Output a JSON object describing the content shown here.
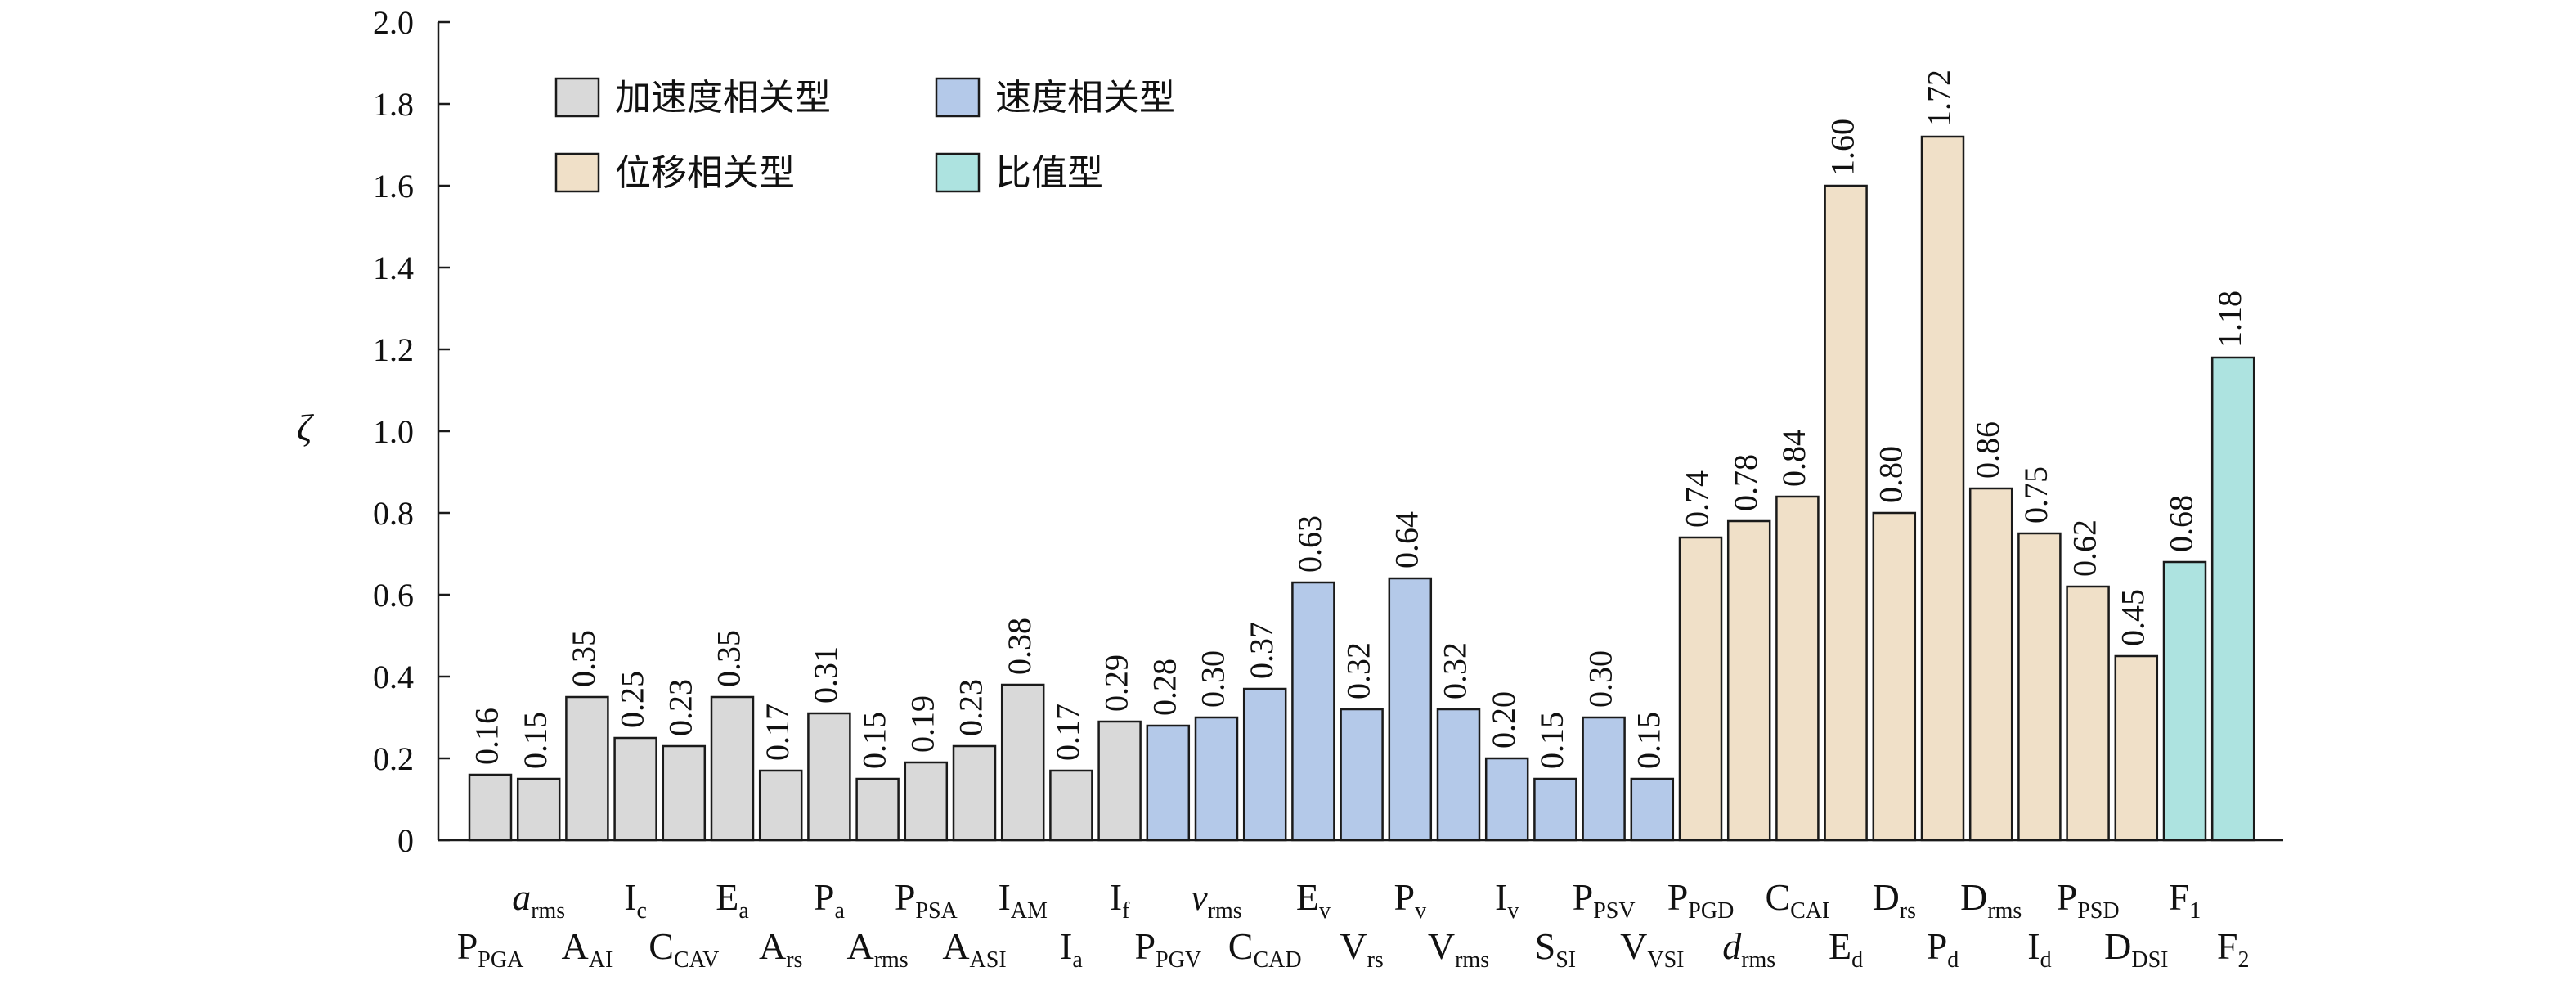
{
  "chart_data": {
    "type": "bar",
    "ylabel": "ζ",
    "ylim": [
      0,
      2.0
    ],
    "yticks": [
      "0",
      "0.2",
      "0.4",
      "0.6",
      "0.8",
      "1.0",
      "1.2",
      "1.4",
      "1.6",
      "1.8",
      "2.0"
    ],
    "legend": {
      "placement": "top-left",
      "entries": [
        {
          "key": "acc",
          "label": "加速度相关型",
          "color": "#d9d9d9"
        },
        {
          "key": "vel",
          "label": "速度相关型",
          "color": "#b4c9e9"
        },
        {
          "key": "disp",
          "label": "位移相关型",
          "color": "#f0e0c8"
        },
        {
          "key": "ratio",
          "label": "比值型",
          "color": "#ade3e0"
        }
      ]
    },
    "bars": [
      {
        "main": "P",
        "sub": "PGA",
        "value": 0.16,
        "label": "0.16",
        "group": "acc",
        "row": 2
      },
      {
        "main": "a",
        "sub": "rms",
        "value": 0.15,
        "label": "0.15",
        "group": "acc",
        "row": 1,
        "italic": true
      },
      {
        "main": "A",
        "sub": "AI",
        "value": 0.35,
        "label": "0.35",
        "group": "acc",
        "row": 2
      },
      {
        "main": "I",
        "sub": "c",
        "value": 0.25,
        "label": "0.25",
        "group": "acc",
        "row": 1
      },
      {
        "main": "C",
        "sub": "CAV",
        "value": 0.23,
        "label": "0.23",
        "group": "acc",
        "row": 2
      },
      {
        "main": "E",
        "sub": "a",
        "value": 0.35,
        "label": "0.35",
        "group": "acc",
        "row": 1
      },
      {
        "main": "A",
        "sub": "rs",
        "value": 0.17,
        "label": "0.17",
        "group": "acc",
        "row": 2
      },
      {
        "main": "P",
        "sub": "a",
        "value": 0.31,
        "label": "0.31",
        "group": "acc",
        "row": 1
      },
      {
        "main": "A",
        "sub": "rms",
        "value": 0.15,
        "label": "0.15",
        "group": "acc",
        "row": 2
      },
      {
        "main": "P",
        "sub": "PSA",
        "value": 0.19,
        "label": "0.19",
        "group": "acc",
        "row": 1
      },
      {
        "main": "A",
        "sub": "ASI",
        "value": 0.23,
        "label": "0.23",
        "group": "acc",
        "row": 2
      },
      {
        "main": "I",
        "sub": "AM",
        "value": 0.38,
        "label": "0.38",
        "group": "acc",
        "row": 1
      },
      {
        "main": "I",
        "sub": "a",
        "value": 0.17,
        "label": "0.17",
        "group": "acc",
        "row": 2
      },
      {
        "main": "I",
        "sub": "f",
        "value": 0.29,
        "label": "0.29",
        "group": "acc",
        "row": 1
      },
      {
        "main": "P",
        "sub": "PGV",
        "value": 0.28,
        "label": "0.28",
        "group": "vel",
        "row": 2
      },
      {
        "main": "v",
        "sub": "rms",
        "value": 0.3,
        "label": "0.30",
        "group": "vel",
        "row": 1,
        "italic": true
      },
      {
        "main": "C",
        "sub": "CAD",
        "value": 0.37,
        "label": "0.37",
        "group": "vel",
        "row": 2
      },
      {
        "main": "E",
        "sub": "v",
        "value": 0.63,
        "label": "0.63",
        "group": "vel",
        "row": 1
      },
      {
        "main": "V",
        "sub": "rs",
        "value": 0.32,
        "label": "0.32",
        "group": "vel",
        "row": 2
      },
      {
        "main": "P",
        "sub": "v",
        "value": 0.64,
        "label": "0.64",
        "group": "vel",
        "row": 1
      },
      {
        "main": "V",
        "sub": "rms",
        "value": 0.32,
        "label": "0.32",
        "group": "vel",
        "row": 2
      },
      {
        "main": "I",
        "sub": "v",
        "value": 0.2,
        "label": "0.20",
        "group": "vel",
        "row": 1
      },
      {
        "main": "S",
        "sub": "SI",
        "value": 0.15,
        "label": "0.15",
        "group": "vel",
        "row": 2
      },
      {
        "main": "P",
        "sub": "PSV",
        "value": 0.3,
        "label": "0.30",
        "group": "vel",
        "row": 1
      },
      {
        "main": "V",
        "sub": "VSI",
        "value": 0.15,
        "label": "0.15",
        "group": "vel",
        "row": 2
      },
      {
        "main": "P",
        "sub": "PGD",
        "value": 0.74,
        "label": "0.74",
        "group": "disp",
        "row": 1
      },
      {
        "main": "d",
        "sub": "rms",
        "value": 0.78,
        "label": "0.78",
        "group": "disp",
        "row": 2,
        "italic": true
      },
      {
        "main": "C",
        "sub": "CAI",
        "value": 0.84,
        "label": "0.84",
        "group": "disp",
        "row": 1
      },
      {
        "main": "E",
        "sub": "d",
        "value": 1.6,
        "label": "1.60",
        "group": "disp",
        "row": 2
      },
      {
        "main": "D",
        "sub": "rs",
        "value": 0.8,
        "label": "0.80",
        "group": "disp",
        "row": 1
      },
      {
        "main": "P",
        "sub": "d",
        "value": 1.72,
        "label": "1.72",
        "group": "disp",
        "row": 2
      },
      {
        "main": "D",
        "sub": "rms",
        "value": 0.86,
        "label": "0.86",
        "group": "disp",
        "row": 1
      },
      {
        "main": "I",
        "sub": "d",
        "value": 0.75,
        "label": "0.75",
        "group": "disp",
        "row": 2
      },
      {
        "main": "P",
        "sub": "PSD",
        "value": 0.62,
        "label": "0.62",
        "group": "disp",
        "row": 1
      },
      {
        "main": "D",
        "sub": "DSI",
        "value": 0.45,
        "label": "0.45",
        "group": "disp",
        "row": 2
      },
      {
        "main": "F",
        "sub": "1",
        "value": 0.68,
        "label": "0.68",
        "group": "ratio",
        "row": 1
      },
      {
        "main": "F",
        "sub": "2",
        "value": 1.18,
        "label": "1.18",
        "group": "ratio",
        "row": 2
      }
    ]
  }
}
